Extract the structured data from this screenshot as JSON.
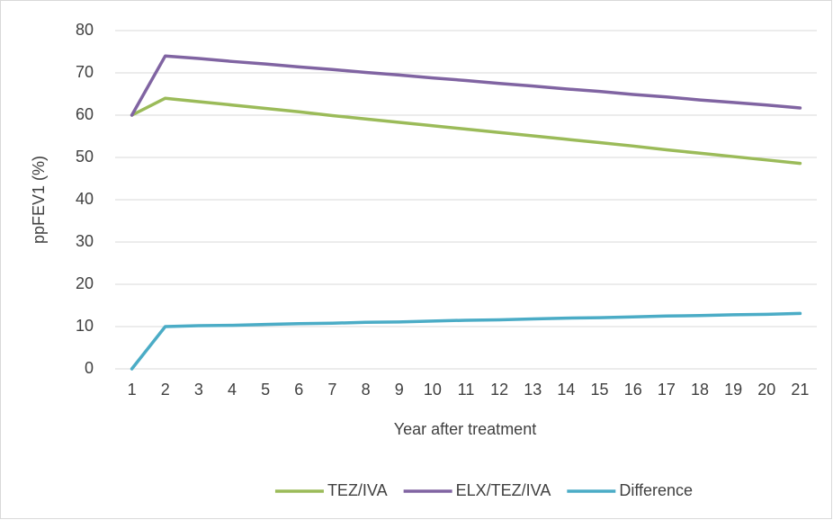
{
  "chart_data": {
    "type": "line",
    "x_label": "Year after treatment",
    "y_label": "ppFEV1 (%)",
    "categories": [
      "1",
      "2",
      "3",
      "4",
      "5",
      "6",
      "7",
      "8",
      "9",
      "10",
      "11",
      "12",
      "13",
      "14",
      "15",
      "16",
      "17",
      "18",
      "19",
      "20",
      "21"
    ],
    "series": [
      {
        "name": "TEZ/IVA",
        "color": "#9bbb59",
        "values": [
          60,
          64,
          63.2,
          62.4,
          61.6,
          60.8,
          59.9,
          59.1,
          58.3,
          57.5,
          56.7,
          55.9,
          55.1,
          54.3,
          53.5,
          52.7,
          51.8,
          51.0,
          50.2,
          49.4,
          48.6
        ]
      },
      {
        "name": "ELX/TEZ/IVA",
        "color": "#8064a2",
        "values": [
          60,
          74,
          73.4,
          72.7,
          72.1,
          71.4,
          70.8,
          70.1,
          69.5,
          68.8,
          68.2,
          67.5,
          66.9,
          66.2,
          65.6,
          64.9,
          64.3,
          63.6,
          63.0,
          62.4,
          61.7
        ]
      },
      {
        "name": "Difference",
        "color": "#4bacc6",
        "values": [
          0,
          10.0,
          10.2,
          10.3,
          10.5,
          10.7,
          10.8,
          11.0,
          11.1,
          11.3,
          11.5,
          11.6,
          11.8,
          12.0,
          12.1,
          12.3,
          12.5,
          12.6,
          12.8,
          12.9,
          13.1
        ]
      }
    ],
    "ylim": [
      0,
      80
    ],
    "yticks": [
      0,
      10,
      20,
      30,
      40,
      50,
      60,
      70,
      80
    ],
    "grid": true,
    "legend": "bottom"
  }
}
